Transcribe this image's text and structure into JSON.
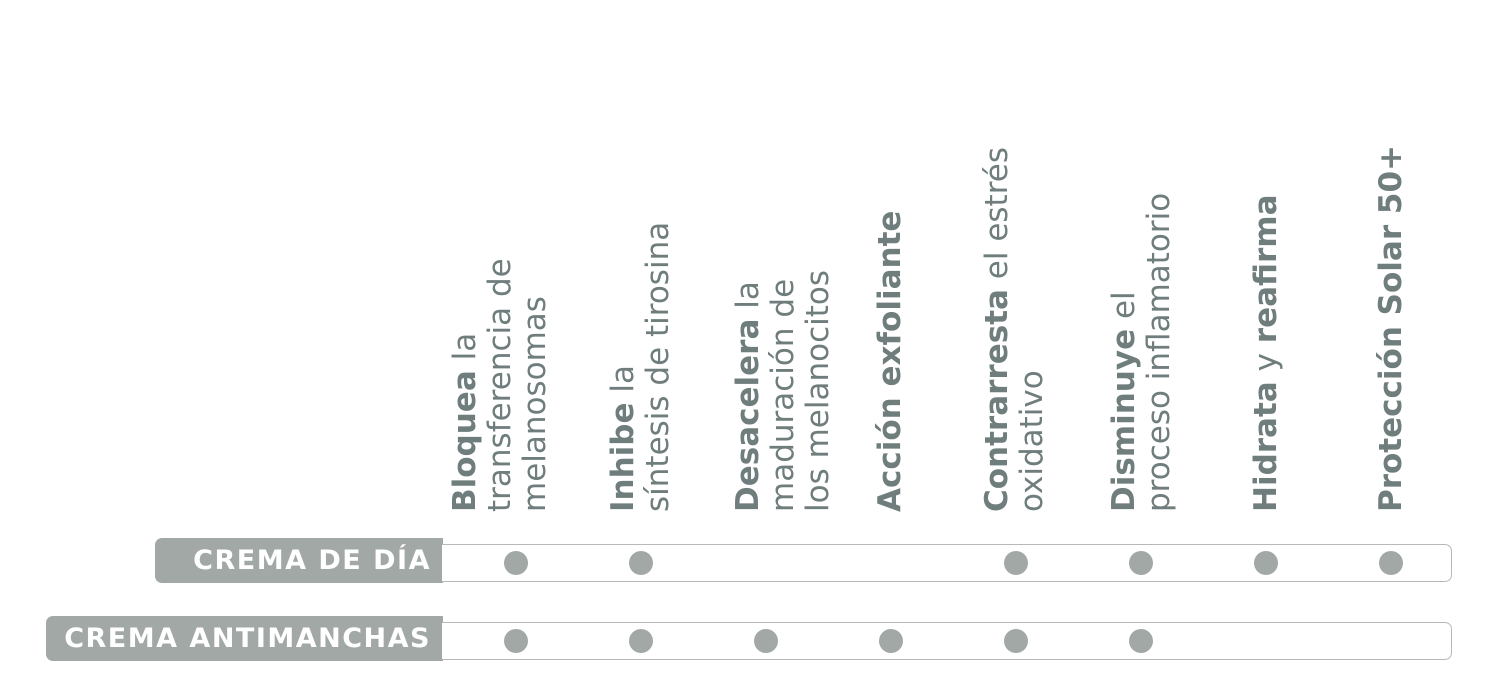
{
  "columns": [
    {
      "bold": "Bloquea",
      "rest": " la",
      "line2": "transferencia de",
      "line3": "melanosomas"
    },
    {
      "bold": "Inhibe",
      "rest": " la",
      "line2": "síntesis de tirosina",
      "line3": ""
    },
    {
      "bold": "Desacelera",
      "rest": " la",
      "line2": "maduración de",
      "line3": "los melanocitos"
    },
    {
      "bold": "Acción exfoliante",
      "rest": "",
      "line2": "",
      "line3": ""
    },
    {
      "bold": "Contrarresta",
      "rest": " el estrés",
      "line2": "oxidativo",
      "line3": ""
    },
    {
      "bold": "Disminuye",
      "rest": " el",
      "line2": "proceso inflamatorio",
      "line3": ""
    },
    {
      "bold": "Hidrata",
      "rest": " y ",
      "bold2": "reafirma",
      "line2": "",
      "line3": ""
    },
    {
      "bold": "Protección Solar 50+",
      "rest": "",
      "line2": "",
      "line3": ""
    }
  ],
  "rows": [
    {
      "label": "CREMA DE DÍA",
      "marks": [
        true,
        true,
        false,
        false,
        true,
        true,
        true,
        true
      ]
    },
    {
      "label": "CREMA ANTIMANCHAS",
      "marks": [
        true,
        true,
        true,
        true,
        true,
        true,
        false,
        false
      ]
    }
  ],
  "colors": {
    "text": "#6f7d7d",
    "label_bg": "#a2a8a5",
    "dot": "#a2a8a5",
    "border": "#b5bab8"
  }
}
